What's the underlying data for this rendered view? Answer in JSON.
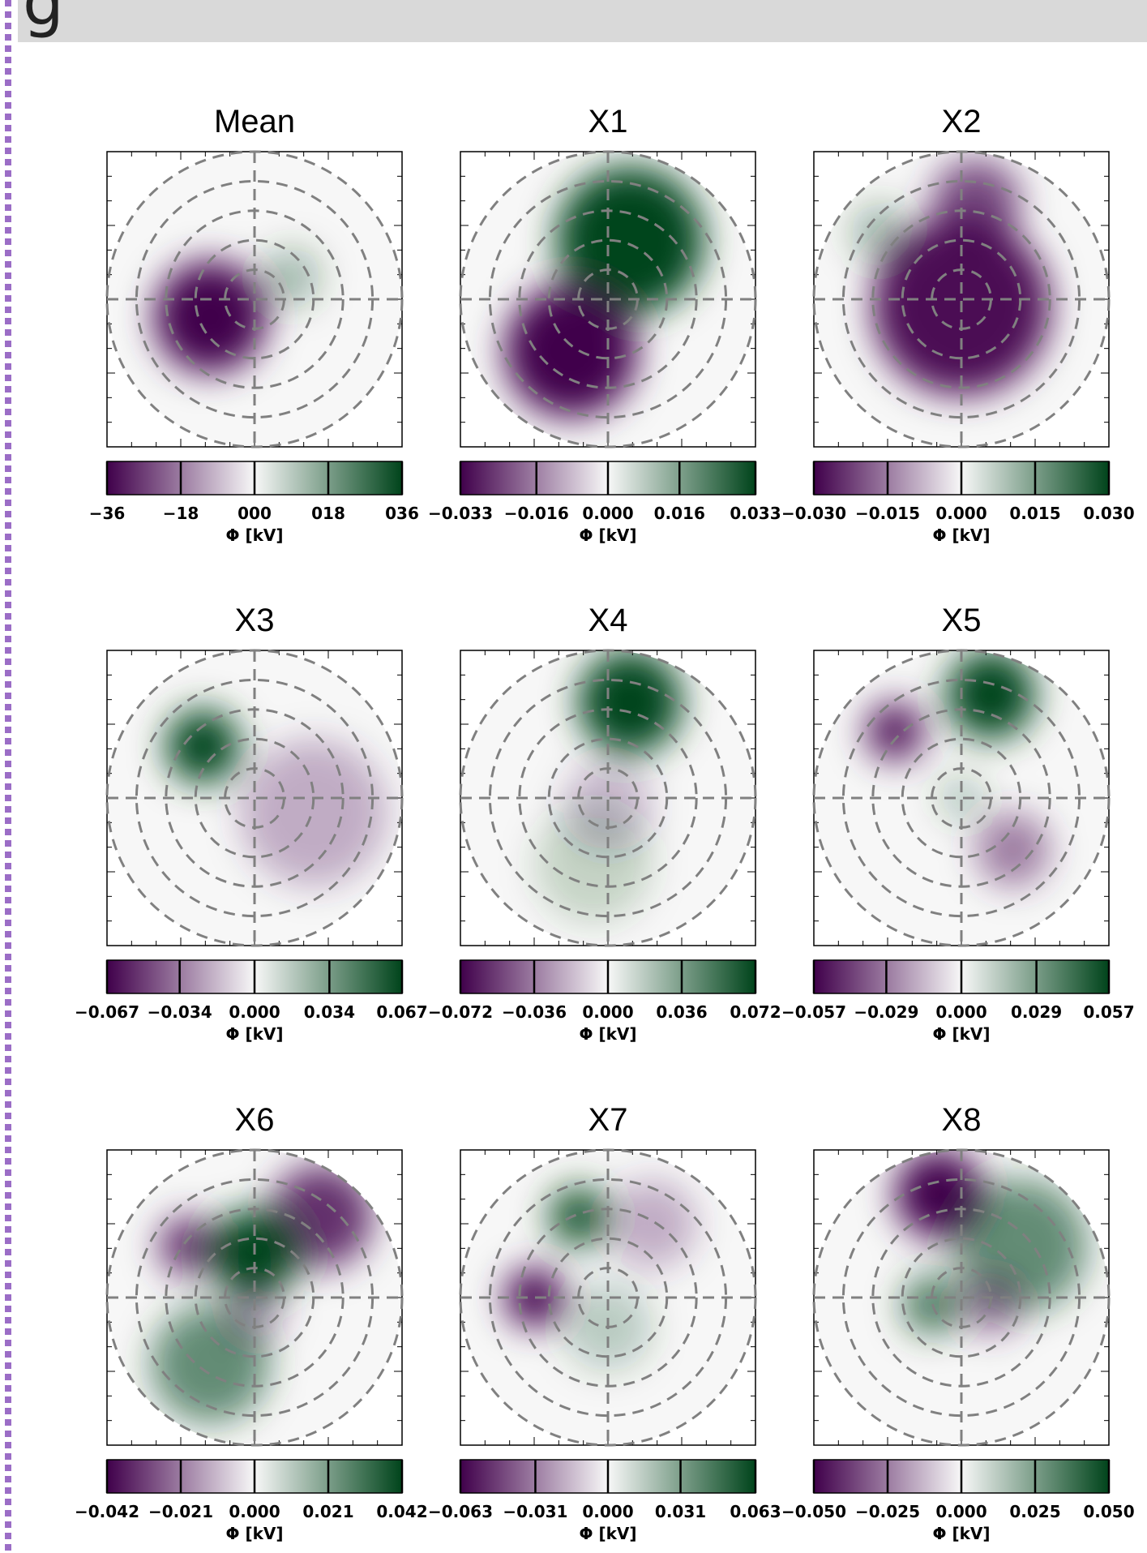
{
  "header": {
    "title": "g"
  },
  "chart_data": [
    {
      "type": "polar-map",
      "title": "Mean",
      "colors": [
        "#40004b",
        "#f7f7f7",
        "#00441b"
      ],
      "clim": [
        -36,
        36
      ],
      "cticks": [
        {
          "value": -36,
          "label": "−36"
        },
        {
          "value": -18,
          "label": "−18"
        },
        {
          "value": 0,
          "label": "000"
        },
        {
          "value": 18,
          "label": "018"
        },
        {
          "value": 36,
          "label": "036"
        }
      ],
      "colorbar_label": "Φ [kV]"
    },
    {
      "type": "polar-map",
      "title": "X1",
      "colors": [
        "#40004b",
        "#f7f7f7",
        "#00441b"
      ],
      "clim": [
        -0.033,
        0.033
      ],
      "cticks": [
        {
          "value": -0.033,
          "label": "−0.033"
        },
        {
          "value": -0.016,
          "label": "−0.016"
        },
        {
          "value": 0,
          "label": "0.000"
        },
        0.016,
        0.033
      ],
      "colorbar_label": "Φ [kV]"
    },
    {
      "type": "polar-map",
      "title": "X2",
      "colors": [
        "#40004b",
        "#f7f7f7",
        "#00441b"
      ],
      "clim": [
        -0.03,
        0.03
      ],
      "cticks": [
        {
          "value": -0.03,
          "label": "−0.030"
        },
        {
          "value": -0.015,
          "label": "−0.015"
        },
        {
          "value": 0,
          "label": "0.000"
        },
        0.015,
        {
          "value": 0.03,
          "label": "0.030"
        }
      ],
      "colorbar_label": "Φ [kV]"
    },
    {
      "type": "polar-map",
      "title": "X3",
      "colors": [
        "#40004b",
        "#f7f7f7",
        "#00441b"
      ],
      "clim": [
        -0.067,
        0.067
      ],
      "cticks": [
        {
          "value": -0.067,
          "label": "−0.067"
        },
        {
          "value": -0.034,
          "label": "−0.034"
        },
        {
          "value": 0,
          "label": "0.000"
        },
        0.034,
        0.067
      ],
      "colorbar_label": "Φ [kV]"
    },
    {
      "type": "polar-map",
      "title": "X4",
      "colors": [
        "#40004b",
        "#f7f7f7",
        "#00441b"
      ],
      "clim": [
        -0.072,
        0.072
      ],
      "cticks": [
        {
          "value": -0.072,
          "label": "−0.072"
        },
        {
          "value": -0.036,
          "label": "−0.036"
        },
        {
          "value": 0,
          "label": "0.000"
        },
        0.036,
        0.072
      ],
      "colorbar_label": "Φ [kV]"
    },
    {
      "type": "polar-map",
      "title": "X5",
      "colors": [
        "#40004b",
        "#f7f7f7",
        "#00441b"
      ],
      "clim": [
        -0.057,
        0.057
      ],
      "cticks": [
        {
          "value": -0.057,
          "label": "−0.057"
        },
        {
          "value": -0.029,
          "label": "−0.029"
        },
        {
          "value": 0,
          "label": "0.000"
        },
        0.029,
        0.057
      ],
      "colorbar_label": "Φ [kV]"
    },
    {
      "type": "polar-map",
      "title": "X6",
      "colors": [
        "#40004b",
        "#f7f7f7",
        "#00441b"
      ],
      "clim": [
        -0.042,
        0.042
      ],
      "cticks": [
        {
          "value": -0.042,
          "label": "−0.042"
        },
        {
          "value": -0.021,
          "label": "−0.021"
        },
        {
          "value": 0,
          "label": "0.000"
        },
        0.021,
        0.042
      ],
      "colorbar_label": "Φ [kV]"
    },
    {
      "type": "polar-map",
      "title": "X7",
      "colors": [
        "#40004b",
        "#f7f7f7",
        "#00441b"
      ],
      "clim": [
        -0.063,
        0.063
      ],
      "cticks": [
        {
          "value": -0.063,
          "label": "−0.063"
        },
        {
          "value": -0.031,
          "label": "−0.031"
        },
        {
          "value": 0,
          "label": "0.000"
        },
        0.031,
        0.063
      ],
      "colorbar_label": "Φ [kV]"
    },
    {
      "type": "polar-map",
      "title": "X8",
      "colors": [
        "#40004b",
        "#f7f7f7",
        "#00441b"
      ],
      "clim": [
        -0.05,
        0.05
      ],
      "cticks": [
        {
          "value": -0.05,
          "label": "−0.050"
        },
        {
          "value": -0.025,
          "label": "−0.025"
        },
        {
          "value": 0,
          "label": "0.000"
        },
        0.025,
        {
          "value": 0.05,
          "label": "0.050"
        }
      ],
      "colorbar_label": "Φ [kV]"
    }
  ]
}
